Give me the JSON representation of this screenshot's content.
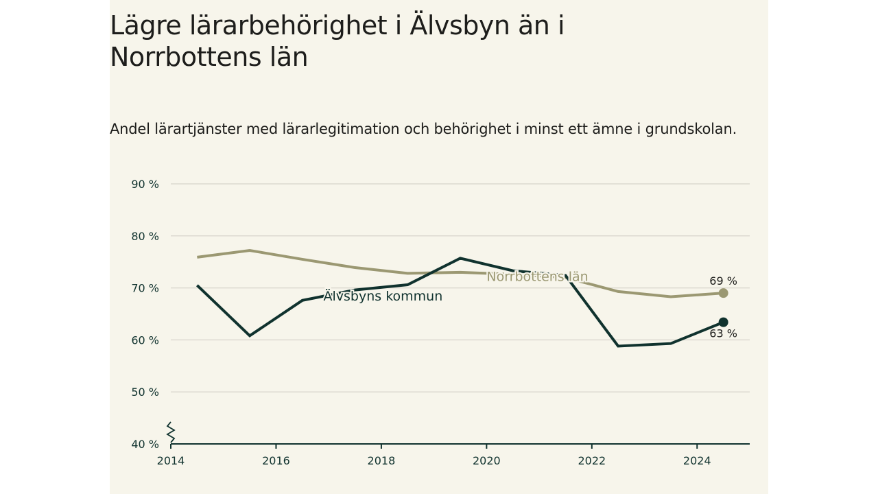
{
  "title": "Lägre lärarbehörighet i Älvsbyn än i Norrbottens län",
  "subtitle": "Andel lärartjänster med lärarlegitimation och behörighet i minst ett ämne i grundskolan.",
  "colors": {
    "background": "#f7f5eb",
    "alvsbyn": "#10322e",
    "norrbotten": "#9b9872",
    "grid": "#dcd9d0",
    "axis": "#10322e"
  },
  "chart_data": {
    "type": "line",
    "x": [
      2014.5,
      2015.5,
      2016.5,
      2017.5,
      2018.5,
      2019.5,
      2020.5,
      2021.5,
      2022.5,
      2023.5,
      2024.5
    ],
    "xticks": [
      "2014",
      "2016",
      "2018",
      "2020",
      "2022",
      "2024"
    ],
    "xlim": [
      2014,
      2025
    ],
    "ylim": [
      40,
      90
    ],
    "yticks": [
      "40 %",
      "50 %",
      "60 %",
      "70 %",
      "80 %",
      "90 %"
    ],
    "grid": true,
    "axis_break": true,
    "series": [
      {
        "name": "Norrbottens län",
        "values": [
          75.9,
          77.2,
          75.5,
          73.9,
          72.8,
          73.0,
          72.6,
          72.0,
          69.3,
          68.3,
          69.0
        ],
        "end_label": "69 %"
      },
      {
        "name": "Älvsbyns kommun",
        "values": [
          70.5,
          60.8,
          67.6,
          69.6,
          70.6,
          75.7,
          73.3,
          72.4,
          58.8,
          59.3,
          63.4
        ],
        "end_label": "63 %"
      }
    ]
  }
}
